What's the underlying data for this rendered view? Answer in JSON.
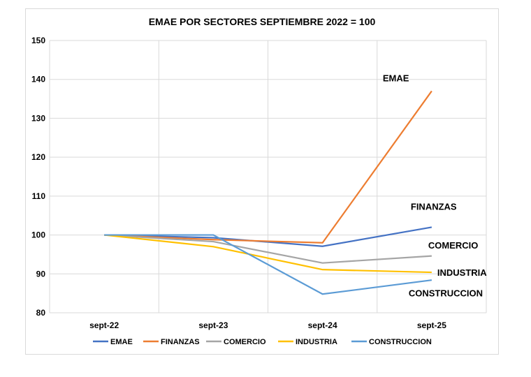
{
  "chart_data": {
    "type": "line",
    "title": "EMAE POR SECTORES SEPTIEMBRE 2022 = 100",
    "xlabel": "",
    "ylabel": "",
    "categories": [
      "sept-22",
      "sept-23",
      "sept-24",
      "sept-25"
    ],
    "ylim": [
      80,
      150
    ],
    "yticks": [
      80,
      90,
      100,
      110,
      120,
      130,
      140,
      150
    ],
    "grid": true,
    "legend": "bottom",
    "series": [
      {
        "name": "EMAE",
        "color": "#4472c4",
        "values": [
          100,
          99.3,
          97.1,
          102.0
        ],
        "label": "EMAE"
      },
      {
        "name": "FINANZAS",
        "color": "#ed7d31",
        "values": [
          100,
          98.8,
          98.0,
          137.0
        ],
        "label": "FINANZAS"
      },
      {
        "name": "COMERCIO",
        "color": "#a5a5a5",
        "values": [
          100,
          98.3,
          92.8,
          94.6
        ],
        "label": "COMERCIO"
      },
      {
        "name": "INDUSTRIA",
        "color": "#ffc000",
        "values": [
          100,
          97.0,
          91.1,
          90.4
        ],
        "label": "INDUSTRIA"
      },
      {
        "name": "CONSTRUCCION",
        "color": "#5b9bd5",
        "values": [
          100,
          100,
          84.8,
          88.4
        ],
        "label": "CONSTRUCCION"
      }
    ]
  }
}
